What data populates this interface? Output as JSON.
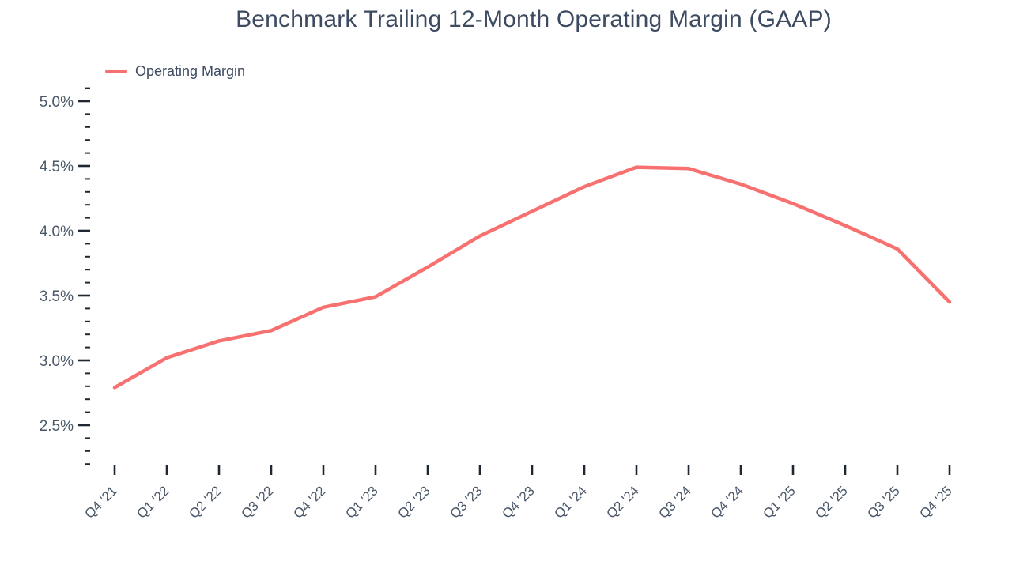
{
  "chart_data": {
    "type": "line",
    "title": "Benchmark Trailing 12-Month Operating Margin (GAAP)",
    "legend": {
      "position": "top-left",
      "entries": [
        {
          "label": "Operating Margin",
          "color": "#f87171"
        }
      ]
    },
    "categories": [
      "Q4 '21",
      "Q1 '22",
      "Q2 '22",
      "Q3 '22",
      "Q4 '22",
      "Q1 '23",
      "Q2 '23",
      "Q3 '23",
      "Q4 '23",
      "Q1 '24",
      "Q2 '24",
      "Q3 '24",
      "Q4 '24",
      "Q1 '25",
      "Q2 '25",
      "Q3 '25",
      "Q4 '25"
    ],
    "series": [
      {
        "name": "Operating Margin",
        "values": [
          2.79,
          3.02,
          3.15,
          3.23,
          3.41,
          3.49,
          3.72,
          3.96,
          4.15,
          4.34,
          4.49,
          4.48,
          4.36,
          4.21,
          4.04,
          3.86,
          3.45
        ]
      }
    ],
    "y_axis": {
      "unit": "%",
      "major_ticks": [
        {
          "value": 5.0,
          "label": "5.0%"
        },
        {
          "value": 4.5,
          "label": "4.5%"
        },
        {
          "value": 4.0,
          "label": "4.0%"
        },
        {
          "value": 3.5,
          "label": "3.5%"
        },
        {
          "value": 3.0,
          "label": "3.0%"
        },
        {
          "value": 2.5,
          "label": "2.5%"
        }
      ],
      "minor_tick_step": 0.1,
      "minor_tick_range": [
        2.2,
        5.1
      ]
    },
    "x_axis": {
      "label_rotation_deg": -45
    },
    "ylim": [
      2.2,
      5.1
    ],
    "grid": false,
    "colors": {
      "line": "#f87171",
      "title_text": "#3d4b61",
      "axis_text": "#4a5768",
      "tick": "#1f2733",
      "background": "#ffffff"
    }
  }
}
